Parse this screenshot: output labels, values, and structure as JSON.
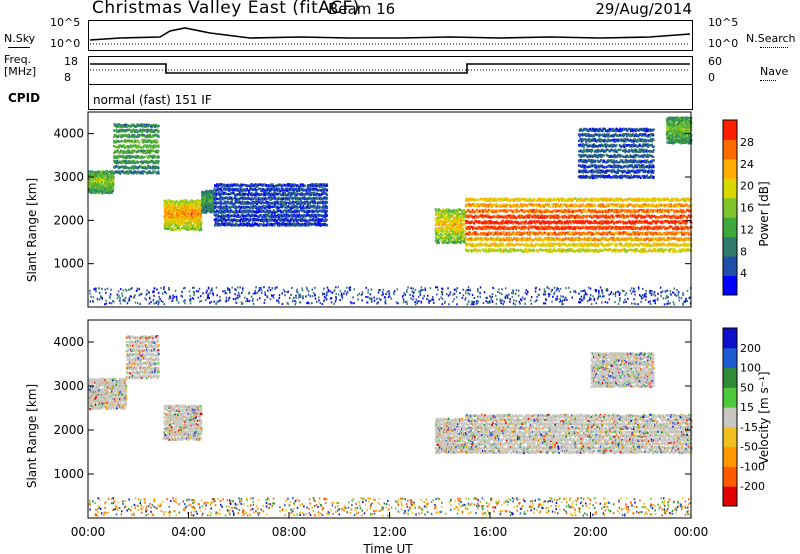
{
  "header": {
    "title": "Christmas Valley East (fitACF)",
    "beam": "Beam 16",
    "date": "29/Aug/2014"
  },
  "strips": {
    "nsky_label": "N.Sky",
    "nsky_ticks": [
      "10^5",
      "10^0"
    ],
    "nsearch_label": "N.Search",
    "freq_label_1": "Freq.",
    "freq_label_2": "[MHz]",
    "freq_ticks": [
      "18",
      "8"
    ],
    "nave_label": "Nave",
    "nave_ticks": [
      "60",
      "0"
    ],
    "cpid_label": "CPID",
    "cpid_text": "normal (fast) 151 IF"
  },
  "colors": {
    "scale": [
      "#0000ff",
      "#1f4fa8",
      "#2f7a6a",
      "#3ea83a",
      "#7fc62c",
      "#d8d800",
      "#ffae00",
      "#ff6a00",
      "#ff1e00"
    ],
    "velocity": [
      "#1010c8",
      "#1e5ad0",
      "#2f8a3a",
      "#4cc83a",
      "#c8c8c0",
      "#f0c020",
      "#ff9800",
      "#ff5a00",
      "#e00000"
    ]
  },
  "chart_data": [
    {
      "type": "heatmap",
      "panel": "power",
      "ylabel": "Slant Range [km]",
      "ylim": [
        0,
        4500
      ],
      "yticks": [
        "1000",
        "2000",
        "3000",
        "4000"
      ],
      "colorbar_label": "Power [dB]",
      "colorbar_ticks": [
        "28",
        "24",
        "20",
        "16",
        "12",
        "8",
        "4"
      ],
      "echo_bands": [
        {
          "t0": 0.0,
          "t1": 1.0,
          "r0": 2650,
          "r1": 3150,
          "level": 0.45
        },
        {
          "t0": 1.0,
          "t1": 2.8,
          "r0": 3100,
          "r1": 4300,
          "level": 0.35
        },
        {
          "t0": 3.0,
          "t1": 4.5,
          "r0": 1800,
          "r1": 2500,
          "level": 0.7
        },
        {
          "t0": 4.5,
          "t1": 5.0,
          "r0": 2200,
          "r1": 2700,
          "level": 0.3
        },
        {
          "t0": 5.0,
          "t1": 9.5,
          "r0": 1900,
          "r1": 2900,
          "level": 0.12
        },
        {
          "t0": 13.8,
          "t1": 15.0,
          "r0": 1500,
          "r1": 2300,
          "level": 0.6
        },
        {
          "t0": 15.0,
          "t1": 24.0,
          "r0": 1300,
          "r1": 2600,
          "level": 0.85
        },
        {
          "t0": 19.5,
          "t1": 22.5,
          "r0": 3000,
          "r1": 4200,
          "level": 0.15
        },
        {
          "t0": 23.0,
          "t1": 24.0,
          "r0": 3800,
          "r1": 4400,
          "level": 0.4
        }
      ]
    },
    {
      "type": "heatmap",
      "panel": "velocity",
      "xlabel": "Time UT",
      "ylabel": "Slant Range [km]",
      "ylim": [
        0,
        4500
      ],
      "xlim": [
        0,
        24
      ],
      "xticks": [
        "00:00",
        "04:00",
        "08:00",
        "12:00",
        "16:00",
        "20:00",
        "00:00"
      ],
      "yticks": [
        "1000",
        "2000",
        "3000",
        "4000"
      ],
      "colorbar_label": "Velocity [m s⁻¹]",
      "colorbar_ticks": [
        "200",
        "100",
        "50",
        "15",
        "-15",
        "-50",
        "-100",
        "-200"
      ],
      "echo_bands": [
        {
          "t0": 0.0,
          "t1": 1.5,
          "r0": 2500,
          "r1": 3200,
          "level": 0.5
        },
        {
          "t0": 1.5,
          "t1": 2.8,
          "r0": 3200,
          "r1": 4200,
          "level": 0.5
        },
        {
          "t0": 3.0,
          "t1": 4.5,
          "r0": 1800,
          "r1": 2600,
          "level": 0.5
        },
        {
          "t0": 13.8,
          "t1": 15.0,
          "r0": 1500,
          "r1": 2300,
          "level": 0.5
        },
        {
          "t0": 15.0,
          "t1": 24.0,
          "r0": 1500,
          "r1": 2400,
          "level": 0.5
        },
        {
          "t0": 20.0,
          "t1": 22.5,
          "r0": 3000,
          "r1": 3800,
          "level": 0.5
        }
      ]
    }
  ]
}
